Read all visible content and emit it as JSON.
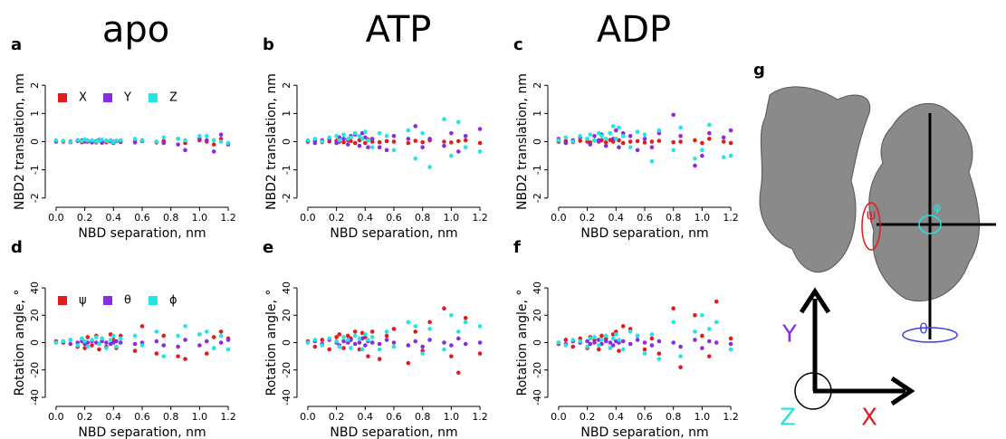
{
  "column_titles": [
    "apo",
    "ATP",
    "ADP"
  ],
  "chart_data": [
    {
      "type": "scatter",
      "panel": "a",
      "x_label": "NBD separation, nm",
      "y_label": "NBD2 translation, nm",
      "legend": "top-left",
      "x": [
        0.0,
        0.05,
        0.1,
        0.15,
        0.18,
        0.2,
        0.22,
        0.25,
        0.28,
        0.3,
        0.32,
        0.35,
        0.38,
        0.4,
        0.42,
        0.45,
        0.55,
        0.6,
        0.7,
        0.75,
        0.85,
        0.9,
        1.0,
        1.05,
        1.1,
        1.15,
        1.2
      ],
      "series": [
        {
          "name": "X",
          "color": "#e41a1c",
          "values": [
            0.02,
            0,
            0.01,
            0.03,
            -0.02,
            0.04,
            0,
            0.02,
            -0.03,
            0.05,
            0.01,
            -0.02,
            0.03,
            0,
            0.02,
            -0.01,
            0,
            0.05,
            -0.03,
            0.02,
            0.1,
            -0.05,
            0.05,
            0,
            -0.1,
            0.1,
            -0.05
          ]
        },
        {
          "name": "Y",
          "color": "#8a2be2",
          "values": [
            0,
            0.02,
            -0.02,
            0.03,
            0.05,
            0,
            0.04,
            -0.03,
            0.02,
            0.06,
            -0.04,
            0.03,
            0.01,
            -0.05,
            0.02,
            0,
            -0.03,
            0.02,
            0,
            -0.05,
            -0.1,
            -0.3,
            0.1,
            0.05,
            -0.35,
            0.25,
            -0.1
          ]
        },
        {
          "name": "Z",
          "color": "#22e5e5",
          "values": [
            0.05,
            0.03,
            0,
            0.06,
            0.02,
            0.08,
            0.04,
            0.05,
            0,
            0.03,
            0.07,
            0.02,
            0.05,
            -0.02,
            0.04,
            0.05,
            0.1,
            0.05,
            0,
            0.15,
            0.1,
            0.05,
            0.2,
            0.2,
            0.05,
            0,
            -0.05
          ]
        }
      ],
      "xlim": [
        -0.05,
        1.25
      ],
      "ylim": [
        -2.2,
        2.2
      ],
      "xticks": [
        {
          "value": 0,
          "label": "0.0"
        },
        0.2,
        0.4,
        0.6,
        0.8,
        {
          "value": 1,
          "label": "1.0"
        },
        1.2
      ],
      "yticks": [
        -2,
        -1,
        0,
        1,
        2
      ]
    },
    {
      "type": "scatter",
      "panel": "b",
      "x_label": "NBD separation, nm",
      "y_label": "NBD2 translation, nm",
      "x": [
        0.0,
        0.05,
        0.1,
        0.15,
        0.2,
        0.22,
        0.25,
        0.28,
        0.3,
        0.33,
        0.36,
        0.38,
        0.4,
        0.42,
        0.45,
        0.5,
        0.55,
        0.6,
        0.7,
        0.75,
        0.8,
        0.85,
        0.95,
        1.0,
        1.05,
        1.1,
        1.2
      ],
      "series": [
        {
          "color": "#e41a1c",
          "values": [
            0,
            0.02,
            -0.02,
            0.01,
            0.03,
            0,
            -0.02,
            0.05,
            0.02,
            -0.05,
            0.05,
            0.1,
            -0.05,
            0.08,
            0,
            -0.02,
            0.02,
            0,
            -0.05,
            0.03,
            -0.02,
            0.05,
            0,
            -0.03,
            0.02,
            0.05,
            -0.05
          ]
        },
        {
          "color": "#8a2be2",
          "values": [
            0.02,
            -0.05,
            0.05,
            0.1,
            -0.05,
            0.15,
            0.1,
            -0.1,
            0.2,
            0.25,
            -0.15,
            0.3,
            0.15,
            -0.2,
            0.1,
            -0.2,
            -0.3,
            0.2,
            0.1,
            0.55,
            -0.2,
            0.1,
            -0.15,
            0.3,
            -0.35,
            0.2,
            0.45
          ]
        },
        {
          "color": "#22e5e5",
          "values": [
            0.05,
            0.1,
            0,
            0.15,
            0.2,
            0.05,
            0.25,
            0.1,
            0.15,
            0.3,
            0.2,
            0.1,
            0.35,
            0.05,
            -0.2,
            0.3,
            0.2,
            -0.3,
            0.4,
            -0.6,
            0.3,
            -0.9,
            0.8,
            -0.5,
            0.7,
            -0.2,
            -0.35
          ]
        }
      ],
      "xlim": [
        -0.05,
        1.25
      ],
      "ylim": [
        -2.2,
        2.2
      ],
      "xticks": [
        {
          "value": 0,
          "label": "0.0"
        },
        0.2,
        0.4,
        0.6,
        0.8,
        {
          "value": 1,
          "label": "1.0"
        },
        1.2
      ],
      "yticks": [
        -2,
        -1,
        0,
        1,
        2
      ]
    },
    {
      "type": "scatter",
      "panel": "c",
      "x_label": "NBD separation, nm",
      "y_label": "NBD2 translation, nm",
      "x": [
        0.0,
        0.05,
        0.1,
        0.15,
        0.2,
        0.22,
        0.25,
        0.28,
        0.3,
        0.33,
        0.36,
        0.38,
        0.4,
        0.42,
        0.45,
        0.5,
        0.55,
        0.6,
        0.65,
        0.7,
        0.8,
        0.85,
        0.95,
        1.0,
        1.05,
        1.15,
        1.2
      ],
      "series": [
        {
          "color": "#e41a1c",
          "values": [
            0,
            0.02,
            -0.02,
            0.03,
            0,
            -0.03,
            0.04,
            0,
            0.05,
            -0.02,
            0.06,
            0,
            0.1,
            0.05,
            -0.05,
            0,
            0.02,
            -0.03,
            0,
            0.03,
            -0.02,
            0,
            0.05,
            -0.05,
            0.1,
            0,
            -0.05
          ]
        },
        {
          "color": "#8a2be2",
          "values": [
            0.1,
            -0.05,
            0.05,
            0.15,
            0.1,
            -0.1,
            0.2,
            0.05,
            0.25,
            -0.15,
            0.3,
            0.1,
            0.4,
            -0.2,
            0.3,
            0.2,
            -0.3,
            0.1,
            -0.2,
            0.3,
            0.95,
            0.2,
            -0.85,
            -0.5,
            0.3,
            0.15,
            0.4
          ]
        },
        {
          "color": "#22e5e5",
          "values": [
            0.05,
            0.15,
            0,
            0.2,
            0.1,
            0.25,
            0.05,
            0.3,
            0.2,
            0.1,
            0.3,
            0.55,
            0.1,
            0.5,
            0.2,
            -0.2,
            0.35,
            0.25,
            -0.7,
            0.4,
            -0.3,
            0.5,
            -0.6,
            -0.3,
            0.6,
            -0.55,
            -0.5
          ]
        }
      ],
      "xlim": [
        -0.05,
        1.25
      ],
      "ylim": [
        -2.2,
        2.2
      ],
      "xticks": [
        {
          "value": 0,
          "label": "0.0"
        },
        0.2,
        0.4,
        0.6,
        0.8,
        {
          "value": 1,
          "label": "1.0"
        },
        1.2
      ],
      "yticks": [
        -2,
        -1,
        0,
        1,
        2
      ]
    },
    {
      "type": "scatter",
      "panel": "d",
      "x_label": "NBD separation, nm",
      "y_label": "Rotation angle, °",
      "legend": "top-left",
      "x": [
        0.0,
        0.05,
        0.1,
        0.15,
        0.18,
        0.2,
        0.22,
        0.25,
        0.28,
        0.3,
        0.32,
        0.35,
        0.38,
        0.4,
        0.42,
        0.45,
        0.55,
        0.6,
        0.7,
        0.75,
        0.85,
        0.9,
        1.0,
        1.05,
        1.1,
        1.15,
        1.2
      ],
      "series": [
        {
          "name": "ψ",
          "color": "#e41a1c",
          "values": [
            1,
            0,
            2,
            -3,
            3,
            -4,
            4,
            -2,
            5,
            -5,
            3,
            -3,
            6,
            2,
            -4,
            5,
            -6,
            12,
            -8,
            5,
            -10,
            -12,
            6,
            -8,
            4,
            8,
            3
          ]
        },
        {
          "name": "θ",
          "color": "#8a2be2",
          "values": [
            0,
            1,
            -1,
            0,
            1,
            -1,
            0,
            1,
            0,
            -1,
            1,
            0,
            -1,
            0,
            1,
            0,
            -1,
            0,
            1,
            -2,
            -3,
            2,
            -2,
            1,
            -4,
            0,
            2
          ]
        },
        {
          "name": "ϕ",
          "color": "#22e5e5",
          "values": [
            0,
            1,
            2,
            -2,
            3,
            1,
            -3,
            2,
            4,
            -1,
            3,
            -4,
            2,
            5,
            -3,
            3,
            5,
            -2,
            8,
            -10,
            5,
            12,
            6,
            8,
            -4,
            5,
            -5
          ]
        }
      ],
      "xlim": [
        -0.05,
        1.25
      ],
      "ylim": [
        -44,
        44
      ],
      "xticks": [
        {
          "value": 0,
          "label": "0.0"
        },
        0.2,
        0.4,
        0.6,
        0.8,
        {
          "value": 1,
          "label": "1.0"
        },
        1.2
      ],
      "yticks": [
        -40,
        -20,
        0,
        20,
        40
      ]
    },
    {
      "type": "scatter",
      "panel": "e",
      "x_label": "NBD separation, nm",
      "y_label": "Rotation angle, °",
      "x": [
        0.0,
        0.05,
        0.1,
        0.15,
        0.2,
        0.22,
        0.25,
        0.28,
        0.3,
        0.33,
        0.36,
        0.38,
        0.4,
        0.42,
        0.45,
        0.5,
        0.55,
        0.6,
        0.7,
        0.75,
        0.8,
        0.85,
        0.95,
        1.0,
        1.05,
        1.1,
        1.2
      ],
      "series": [
        {
          "color": "#e41a1c",
          "values": [
            1,
            -3,
            2,
            -5,
            4,
            6,
            -4,
            5,
            3,
            8,
            -5,
            7,
            4,
            -10,
            8,
            -12,
            5,
            10,
            -15,
            8,
            -6,
            15,
            25,
            -10,
            -22,
            18,
            -8
          ]
        },
        {
          "color": "#8a2be2",
          "values": [
            0,
            1,
            -1,
            2,
            0,
            -2,
            1,
            0,
            2,
            -1,
            0,
            3,
            -2,
            1,
            0,
            -1,
            2,
            0,
            -2,
            1,
            -3,
            2,
            0,
            -2,
            3,
            -1,
            0
          ]
        },
        {
          "color": "#22e5e5",
          "values": [
            0,
            2,
            -2,
            3,
            1,
            -3,
            4,
            2,
            -4,
            5,
            3,
            -5,
            6,
            2,
            4,
            -5,
            8,
            -3,
            15,
            12,
            -8,
            10,
            -5,
            20,
            8,
            15,
            12
          ]
        }
      ],
      "xlim": [
        -0.05,
        1.25
      ],
      "ylim": [
        -44,
        44
      ],
      "xticks": [
        {
          "value": 0,
          "label": "0.0"
        },
        0.2,
        0.4,
        0.6,
        0.8,
        {
          "value": 1,
          "label": "1.0"
        },
        1.2
      ],
      "yticks": [
        -40,
        -20,
        0,
        20,
        40
      ]
    },
    {
      "type": "scatter",
      "panel": "f",
      "x_label": "NBD separation, nm",
      "y_label": "Rotation angle, °",
      "x": [
        0.0,
        0.05,
        0.1,
        0.15,
        0.2,
        0.22,
        0.25,
        0.28,
        0.3,
        0.33,
        0.36,
        0.38,
        0.4,
        0.42,
        0.45,
        0.5,
        0.55,
        0.6,
        0.65,
        0.7,
        0.8,
        0.85,
        0.95,
        1.0,
        1.05,
        1.1,
        1.2
      ],
      "series": [
        {
          "color": "#e41a1c",
          "values": [
            -1,
            2,
            -3,
            3,
            -4,
            4,
            2,
            -5,
            5,
            3,
            -4,
            6,
            8,
            -6,
            12,
            10,
            5,
            -5,
            3,
            -8,
            25,
            -18,
            20,
            5,
            -10,
            30,
            3
          ]
        },
        {
          "color": "#8a2be2",
          "values": [
            0,
            -1,
            1,
            0,
            1,
            -1,
            0,
            2,
            -1,
            1,
            0,
            -2,
            1,
            0,
            1,
            -1,
            2,
            0,
            -2,
            1,
            0,
            -3,
            2,
            -4,
            1,
            0,
            -1
          ]
        },
        {
          "color": "#22e5e5",
          "values": [
            0,
            -2,
            2,
            1,
            -3,
            3,
            4,
            -2,
            2,
            5,
            -4,
            3,
            6,
            2,
            -5,
            8,
            5,
            -8,
            6,
            -12,
            15,
            -10,
            8,
            20,
            10,
            15,
            -5
          ]
        }
      ],
      "xlim": [
        -0.05,
        1.25
      ],
      "ylim": [
        -44,
        44
      ],
      "xticks": [
        {
          "value": 0,
          "label": "0.0"
        },
        0.2,
        0.4,
        0.6,
        0.8,
        {
          "value": 1,
          "label": "1.0"
        },
        1.2
      ],
      "yticks": [
        -40,
        -20,
        0,
        20,
        40
      ]
    }
  ],
  "diagram": {
    "label": "g",
    "axes": [
      "Y",
      "Z",
      "X"
    ],
    "angles": [
      "ψ",
      "φ",
      "θ"
    ]
  }
}
